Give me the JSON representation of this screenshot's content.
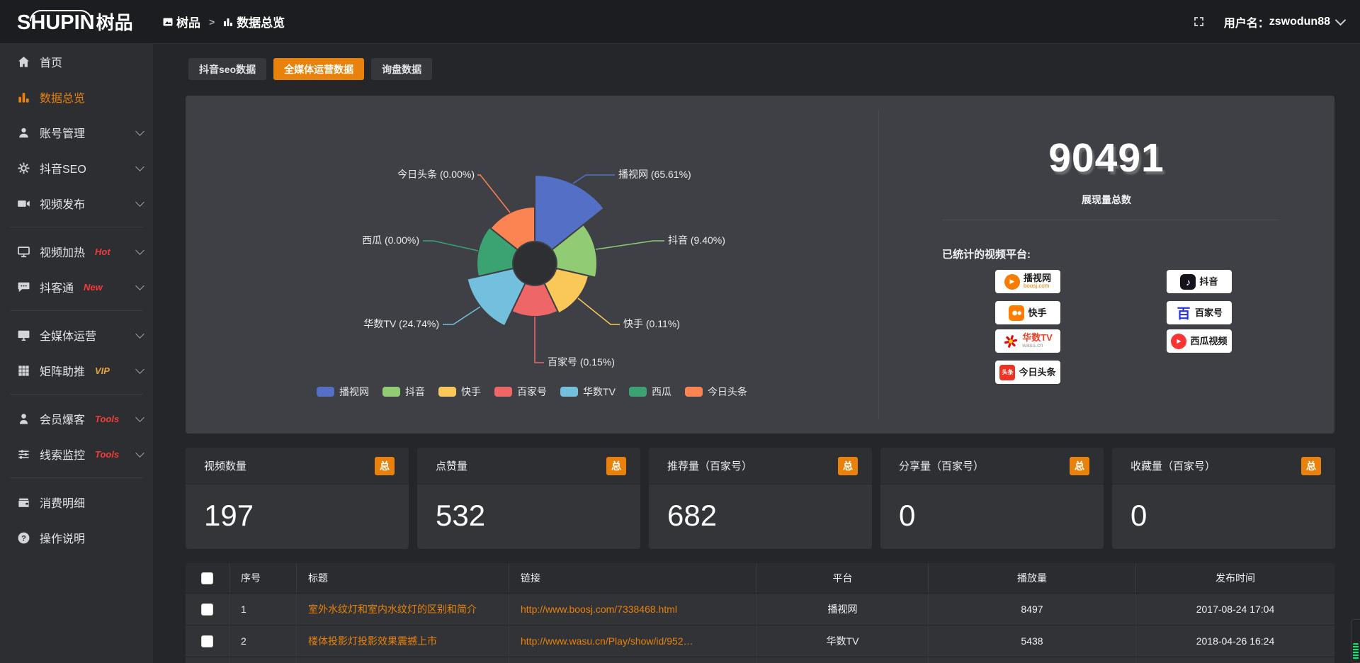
{
  "brand": {
    "logo_text": "SHUPIN",
    "logo_suffix": "树品"
  },
  "topbar": {
    "breadcrumb": [
      {
        "label": "树品"
      },
      {
        "label": "数据总览"
      }
    ],
    "separator": ">",
    "username_label": "用户名：",
    "username": "zswodun88"
  },
  "colors": {
    "accent": "#e8820c",
    "hot_badge": "#f23c3c",
    "vip_badge": "#e6a23c",
    "panel_bg": "#3e4045",
    "sidebar_bg": "#2c2e32",
    "topbar_bg": "#1c1d20"
  },
  "sidebar": {
    "items": [
      {
        "label": "首页",
        "icon": "home",
        "active": false,
        "expandable": false,
        "badge": "",
        "divider_after": false
      },
      {
        "label": "数据总览",
        "icon": "bar-chart",
        "active": true,
        "expandable": false,
        "badge": "",
        "divider_after": false
      },
      {
        "label": "账号管理",
        "icon": "user",
        "active": false,
        "expandable": true,
        "badge": "",
        "divider_after": false
      },
      {
        "label": "抖音SEO",
        "icon": "gear",
        "active": false,
        "expandable": true,
        "badge": "",
        "divider_after": false
      },
      {
        "label": "视频发布",
        "icon": "video-camera",
        "active": false,
        "expandable": true,
        "badge": "",
        "divider_after": true
      },
      {
        "label": "视频加热",
        "icon": "screen",
        "active": false,
        "expandable": true,
        "badge": "Hot",
        "badge_color": "#f23c3c",
        "divider_after": false
      },
      {
        "label": "抖客通",
        "icon": "chat-bubble",
        "active": false,
        "expandable": true,
        "badge": "New",
        "badge_color": "#f23c3c",
        "divider_after": true
      },
      {
        "label": "全媒体运营",
        "icon": "monitor",
        "active": false,
        "expandable": true,
        "badge": "",
        "divider_after": false
      },
      {
        "label": "矩阵助推",
        "icon": "grid",
        "active": false,
        "expandable": true,
        "badge": "VIP",
        "badge_color": "#e6a23c",
        "divider_after": true
      },
      {
        "label": "会员爆客",
        "icon": "person",
        "active": false,
        "expandable": true,
        "badge": "Tools",
        "badge_color": "#f23c3c",
        "divider_after": false
      },
      {
        "label": "线索监控",
        "icon": "sliders",
        "active": false,
        "expandable": true,
        "badge": "Tools",
        "badge_color": "#f23c3c",
        "divider_after": true
      },
      {
        "label": "消费明细",
        "icon": "wallet",
        "active": false,
        "expandable": false,
        "badge": "",
        "divider_after": false
      },
      {
        "label": "操作说明",
        "icon": "question-circle",
        "active": false,
        "expandable": false,
        "badge": "",
        "divider_after": false
      }
    ]
  },
  "tabs": [
    {
      "label": "抖音seo数据",
      "active": false
    },
    {
      "label": "全媒体运营数据",
      "active": true
    },
    {
      "label": "询盘数据",
      "active": false
    }
  ],
  "chart_data": {
    "type": "pie",
    "variant": "nightingale-rose-donut",
    "categories": [
      "播视网",
      "抖音",
      "快手",
      "百家号",
      "华数TV",
      "西瓜",
      "今日头条"
    ],
    "values": [
      65.61,
      9.4,
      0.11,
      0.15,
      24.74,
      0.0,
      0.0
    ],
    "unit": "%",
    "colors": [
      "#5470c6",
      "#91cc75",
      "#fac858",
      "#ee6666",
      "#73c0de",
      "#3ba272",
      "#fc8452"
    ],
    "label_format": "name (value%)",
    "legend_position": "bottom",
    "legend": [
      "播视网",
      "抖音",
      "快手",
      "百家号",
      "华数TV",
      "西瓜",
      "今日头条"
    ]
  },
  "summary": {
    "total_value": "90491",
    "total_label": "展现量总数",
    "platforms_label": "已统计的视频平台:",
    "platforms_left": [
      {
        "name": "播视网",
        "sub": "boosj.com",
        "logo": "boosj"
      },
      {
        "name": "快手",
        "sub": "",
        "logo": "kuaishou"
      },
      {
        "name": "华数TV",
        "sub": "wasu.cn",
        "logo": "wasu"
      },
      {
        "name": "今日头条",
        "sub": "",
        "logo": "toutiao"
      }
    ],
    "platforms_right": [
      {
        "name": "抖音",
        "sub": "",
        "logo": "douyin"
      },
      {
        "name": "百家号",
        "sub": "",
        "logo": "baijiahao"
      },
      {
        "name": "西瓜视频",
        "sub": "",
        "logo": "xigua"
      }
    ]
  },
  "stat_cards": [
    {
      "title": "视频数量",
      "badge": "总",
      "value": "197"
    },
    {
      "title": "点赞量",
      "badge": "总",
      "value": "532"
    },
    {
      "title": "推荐量（百家号）",
      "badge": "总",
      "value": "682"
    },
    {
      "title": "分享量（百家号）",
      "badge": "总",
      "value": "0"
    },
    {
      "title": "收藏量（百家号）",
      "badge": "总",
      "value": "0"
    }
  ],
  "table": {
    "headers": [
      "序号",
      "标题",
      "链接",
      "平台",
      "播放量",
      "发布时间"
    ],
    "rows": [
      {
        "index": "1",
        "title": "室外水纹灯和室内水纹灯的区别和简介",
        "link": "http://www.boosj.com/7338468.html",
        "platform": "播视网",
        "plays": "8497",
        "time": "2017-08-24 17:04"
      },
      {
        "index": "2",
        "title": "楼体投影灯投影效果震撼上市",
        "link": "http://www.wasu.cn/Play/show/id/952…",
        "platform": "华数TV",
        "plays": "5438",
        "time": "2018-04-26 16:24"
      }
    ]
  }
}
